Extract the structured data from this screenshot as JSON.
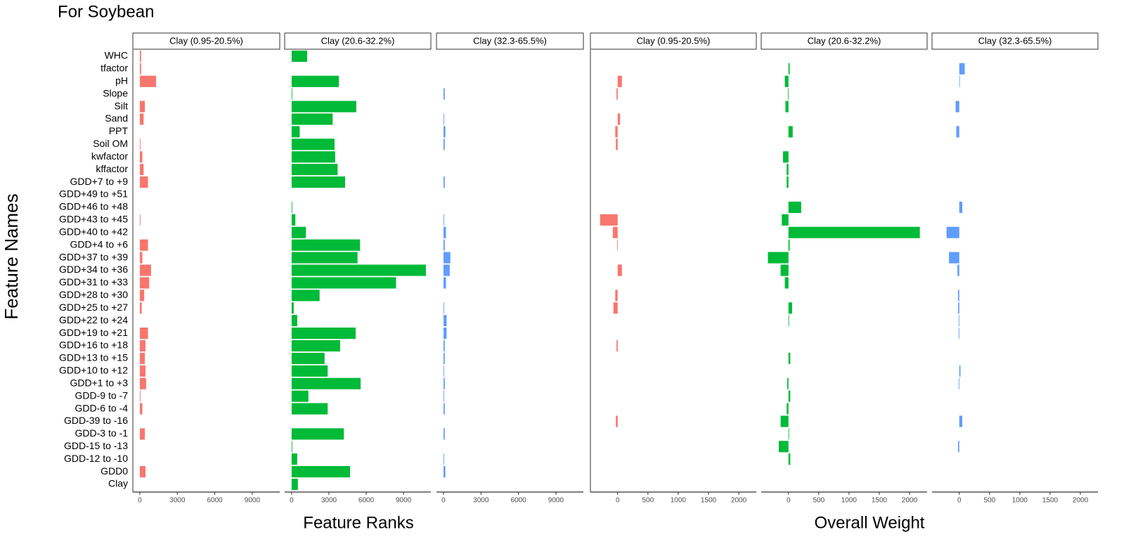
{
  "chart_data": {
    "type": "bar",
    "orientation": "horizontal",
    "title": "For Soybean",
    "y_label": "Feature Names",
    "categories": [
      "WHC",
      "tfactor",
      "pH",
      "Slope",
      "Silt",
      "Sand",
      "PPT",
      "Soil OM",
      "kwfactor",
      "kffactor",
      "GDD+7 to +9",
      "GDD+49 to +51",
      "GDD+46 to +48",
      "GDD+43 to +45",
      "GDD+40 to +42",
      "GDD+4 to +6",
      "GDD+37 to +39",
      "GDD+34 to +36",
      "GDD+31 to +33",
      "GDD+28 to +30",
      "GDD+25 to +27",
      "GDD+22 to +24",
      "GDD+19 to +21",
      "GDD+16 to +18",
      "GDD+13 to +15",
      "GDD+10 to +12",
      "GDD+1 to +3",
      "GDD-9 to -7",
      "GDD-6 to -4",
      "GDD-39 to -16",
      "GDD-3 to -1",
      "GDD-15 to -13",
      "GDD-12 to -10",
      "GDD0",
      "Clay"
    ],
    "groups": [
      {
        "x_label": "Feature Ranks",
        "xlim": [
          -560,
          11200
        ],
        "xticks": [
          0,
          3000,
          6000,
          9000
        ],
        "series": [
          {
            "name": "Clay (0.95-20.5%)",
            "color": "#F8766D",
            "values": [
              100,
              100,
              1300,
              0,
              400,
              300,
              0,
              50,
              200,
              300,
              650,
              0,
              0,
              50,
              0,
              650,
              200,
              900,
              750,
              350,
              150,
              0,
              650,
              450,
              400,
              450,
              500,
              50,
              200,
              0,
              400,
              0,
              0,
              450,
              0
            ]
          },
          {
            "name": "Clay (20.6-32.2%)",
            "color": "#00BA38",
            "values": [
              1250,
              0,
              3800,
              50,
              5200,
              3300,
              650,
              3450,
              3500,
              3700,
              4300,
              0,
              50,
              300,
              1150,
              5500,
              5300,
              10800,
              8400,
              2250,
              170,
              450,
              5150,
              3900,
              2650,
              2900,
              5550,
              1350,
              2900,
              0,
              4200,
              50,
              450,
              4700,
              500
            ]
          },
          {
            "name": "Clay (32.3-65.5%)",
            "color": "#619CFF",
            "values": [
              0,
              0,
              0,
              100,
              0,
              50,
              150,
              100,
              0,
              0,
              100,
              0,
              0,
              50,
              200,
              100,
              550,
              500,
              200,
              0,
              50,
              250,
              250,
              100,
              100,
              50,
              100,
              50,
              100,
              0,
              100,
              0,
              50,
              150,
              0
            ]
          }
        ]
      },
      {
        "x_label": "Overall Weight",
        "xlim": [
          -450,
          2290
        ],
        "xticks": [
          0,
          500,
          1000,
          1500,
          2000
        ],
        "series": [
          {
            "name": "Clay (0.95-20.5%)",
            "color": "#F8766D",
            "values": [
              0,
              0,
              70,
              -20,
              0,
              40,
              -40,
              -30,
              0,
              0,
              0,
              0,
              0,
              -290,
              -80,
              -10,
              0,
              70,
              0,
              -40,
              -70,
              0,
              0,
              -20,
              0,
              0,
              0,
              0,
              0,
              -30,
              0,
              0,
              0,
              0,
              0
            ]
          },
          {
            "name": "Clay (20.6-32.2%)",
            "color": "#00BA38",
            "values": [
              0,
              20,
              -60,
              -10,
              -50,
              0,
              70,
              0,
              -90,
              -30,
              -30,
              0,
              210,
              -110,
              2170,
              20,
              -340,
              -130,
              -60,
              0,
              60,
              10,
              0,
              0,
              30,
              0,
              -20,
              30,
              -30,
              -130,
              10,
              -160,
              30,
              0,
              0
            ]
          },
          {
            "name": "Clay (32.3-65.5%)",
            "color": "#619CFF",
            "values": [
              0,
              90,
              10,
              0,
              -60,
              0,
              -50,
              0,
              0,
              0,
              0,
              0,
              50,
              0,
              -210,
              0,
              -170,
              -30,
              0,
              -20,
              -20,
              -10,
              -10,
              0,
              0,
              20,
              -10,
              0,
              0,
              50,
              0,
              -20,
              0,
              0,
              0
            ]
          }
        ]
      }
    ]
  }
}
